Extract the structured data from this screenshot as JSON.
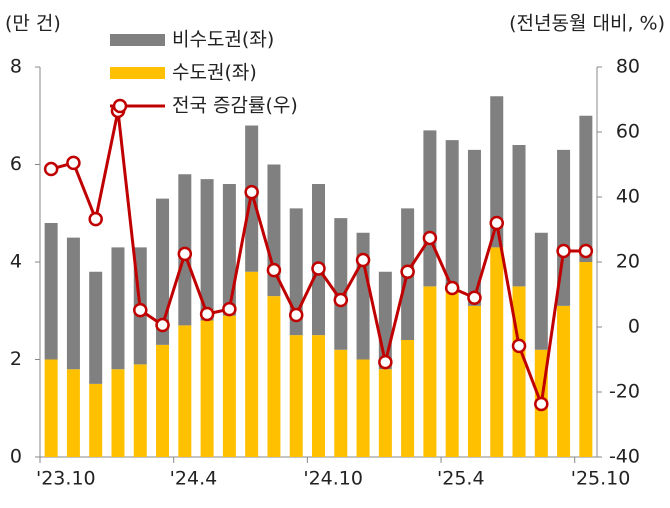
{
  "chart_data": {
    "type": "bar",
    "y_label": "(만 건)",
    "y2_label": "(전년동월 대비, %)",
    "categories": [
      "'23.10",
      null,
      null,
      null,
      null,
      null,
      "'24.4",
      null,
      null,
      null,
      null,
      null,
      "'24.10",
      null,
      null,
      null,
      null,
      null,
      "'25.4",
      null,
      null,
      null,
      null,
      null,
      "'25.10"
    ],
    "series": [
      {
        "name": "비수도권(좌)",
        "color": "#808080",
        "values": [
          2.8,
          2.7,
          2.3,
          2.5,
          2.4,
          3.0,
          3.1,
          2.9,
          2.7,
          3.0,
          2.7,
          2.6,
          3.1,
          2.7,
          2.6,
          2.0,
          2.7,
          3.2,
          3.1,
          3.2,
          3.1,
          2.9,
          2.4,
          3.2,
          3.0
        ]
      },
      {
        "name": "수도권(좌)",
        "color": "#ffc000",
        "values": [
          2.0,
          1.8,
          1.5,
          1.8,
          1.9,
          2.3,
          2.7,
          2.8,
          2.9,
          3.8,
          3.3,
          2.5,
          2.5,
          2.2,
          2.0,
          1.8,
          2.4,
          3.5,
          3.4,
          3.1,
          4.3,
          3.5,
          2.2,
          3.1,
          4.0
        ]
      },
      {
        "name": "전국 증감률(우)",
        "color": "#c00000",
        "type": "line",
        "axis": "y2",
        "values": [
          48.6,
          50.5,
          33.2,
          66.5,
          5.2,
          0.6,
          22.5,
          4,
          5.5,
          41.5,
          17.5,
          3.7,
          18,
          8.3,
          20.6,
          -10.8,
          17,
          27.4,
          12,
          9,
          32,
          -5.8,
          -23.7,
          23.4,
          23.4
        ]
      }
    ],
    "ylim": [
      0,
      8
    ],
    "yticks": [
      0,
      2,
      4,
      6,
      8
    ],
    "y2lim": [
      -40,
      80
    ],
    "y2ticks": [
      -40,
      -20,
      0,
      20,
      40,
      60,
      80
    ]
  }
}
